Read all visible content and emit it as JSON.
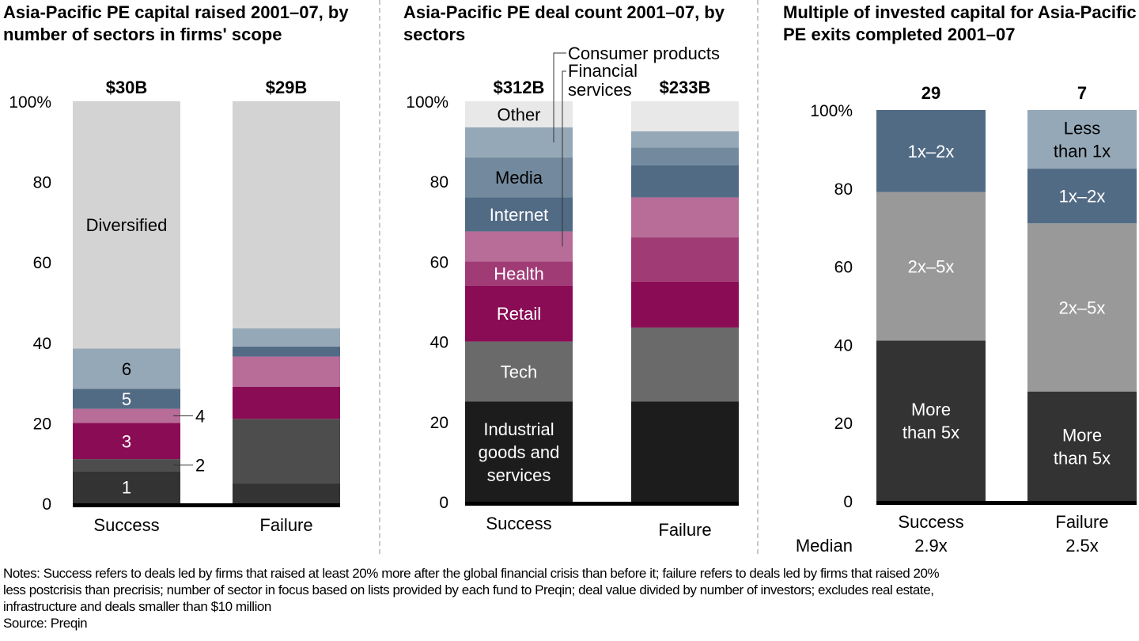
{
  "chart_data": [
    {
      "type": "bar",
      "stacked": true,
      "title": "Asia-Pacific PE capital raised 2001–07, by number of sectors in firms' scope",
      "categories": [
        "Success",
        "Failure"
      ],
      "totals": [
        "$30B",
        "$29B"
      ],
      "ylim": [
        0,
        100
      ],
      "yticks": [
        "0",
        "20",
        "40",
        "60",
        "80",
        "100%"
      ],
      "series": [
        {
          "name": "1",
          "color": "#333333",
          "values": [
            8,
            5
          ],
          "label_color": "#ffffff",
          "label_in": "Success"
        },
        {
          "name": "2",
          "color": "#4d4d4d",
          "values": [
            3,
            16
          ],
          "callout": "2"
        },
        {
          "name": "3",
          "color": "#8a0c55",
          "values": [
            9,
            8
          ],
          "label_color": "#ffffff",
          "label_in": "Success"
        },
        {
          "name": "4",
          "color": "#b86c98",
          "values": [
            3.5,
            7.5
          ],
          "callout": "4"
        },
        {
          "name": "5",
          "color": "#526b85",
          "values": [
            5,
            2.5
          ],
          "label_color": "#ffffff",
          "label_in": "Success"
        },
        {
          "name": "6",
          "color": "#95a8b7",
          "values": [
            10,
            4.5
          ],
          "label_color": "#000000",
          "label_in": "Success"
        },
        {
          "name": "Diversified",
          "color": "#d3d3d3",
          "values": [
            61.5,
            56.5
          ],
          "label_color": "#000000",
          "label_in": "Success"
        }
      ]
    },
    {
      "type": "bar",
      "stacked": true,
      "title": "Asia-Pacific  PE deal count 2001–07, by sectors",
      "categories": [
        "Success",
        "Failure"
      ],
      "totals": [
        "$312B",
        "$233B"
      ],
      "ylim": [
        0,
        100
      ],
      "yticks": [
        "0",
        "20",
        "40",
        "60",
        "80",
        "100%"
      ],
      "series": [
        {
          "name": "Industrial goods and services",
          "color": "#1c1c1c",
          "values": [
            25,
            25
          ],
          "label_color": "#ffffff",
          "label_in": "Success"
        },
        {
          "name": "Tech",
          "color": "#6a6a6a",
          "values": [
            15,
            18.5
          ],
          "label_color": "#ffffff",
          "label_in": "Success"
        },
        {
          "name": "Retail",
          "color": "#8a0c55",
          "values": [
            14,
            11.5
          ],
          "label_color": "#ffffff",
          "label_in": "Success"
        },
        {
          "name": "Health",
          "color": "#a03b76",
          "values": [
            6,
            11
          ],
          "label_color": "#ffffff",
          "label_in": "Success"
        },
        {
          "name": "Financial services",
          "color": "#b86c98",
          "values": [
            7.5,
            10
          ],
          "callout": "Financial services"
        },
        {
          "name": "Internet",
          "color": "#526b85",
          "values": [
            8.5,
            8
          ],
          "label_color": "#ffffff",
          "label_in": "Success"
        },
        {
          "name": "Media",
          "color": "#738a9e",
          "values": [
            10,
            4.5
          ],
          "label_color": "#000000",
          "label_in": "Success"
        },
        {
          "name": "Consumer products",
          "color": "#95a8b7",
          "values": [
            7.5,
            4
          ],
          "callout": "Consumer products"
        },
        {
          "name": "Other",
          "color": "#e8e8e8",
          "values": [
            6.5,
            7.5
          ],
          "label_color": "#000000",
          "label_in": "Success"
        }
      ]
    },
    {
      "type": "bar",
      "stacked": true,
      "title": "Multiple of invested capital for Asia-Pacific PE exits completed 2001–07",
      "categories": [
        "Success",
        "Failure"
      ],
      "totals": [
        "29",
        "7"
      ],
      "ylim": [
        0,
        100
      ],
      "yticks": [
        "0",
        "20",
        "40",
        "60",
        "80",
        "100%"
      ],
      "medians_label": "Median",
      "medians": [
        "2.9x",
        "2.5x"
      ],
      "series": [
        {
          "name": "More than 5x",
          "color": "#333333",
          "values": [
            41,
            28
          ],
          "label_color": "#ffffff",
          "label_in": "both"
        },
        {
          "name": "2x–5x",
          "color": "#999999",
          "values": [
            38,
            43
          ],
          "label_color": "#ffffff",
          "label_in": "both"
        },
        {
          "name": "1x–2x",
          "color": "#526b85",
          "values": [
            21,
            14
          ],
          "label_color": "#ffffff",
          "label_in": "both"
        },
        {
          "name": "Less than 1x",
          "color": "#95a8b7",
          "values": [
            0,
            15
          ],
          "label_color": "#000000",
          "label_in": "Failure"
        }
      ]
    }
  ],
  "notes": {
    "lines": [
      "Notes: Success refers to deals led by firms that raised at least 20% more after the global financial crisis than before it; failure refers to deals led by firms that raised 20%",
      "less postcrisis than precrisis; number of sector in focus based on lists provided by each fund to Preqin; deal value divided by number of investors; excludes real estate,",
      "infrastructure and deals smaller than $10 million",
      "Source: Preqin"
    ]
  }
}
